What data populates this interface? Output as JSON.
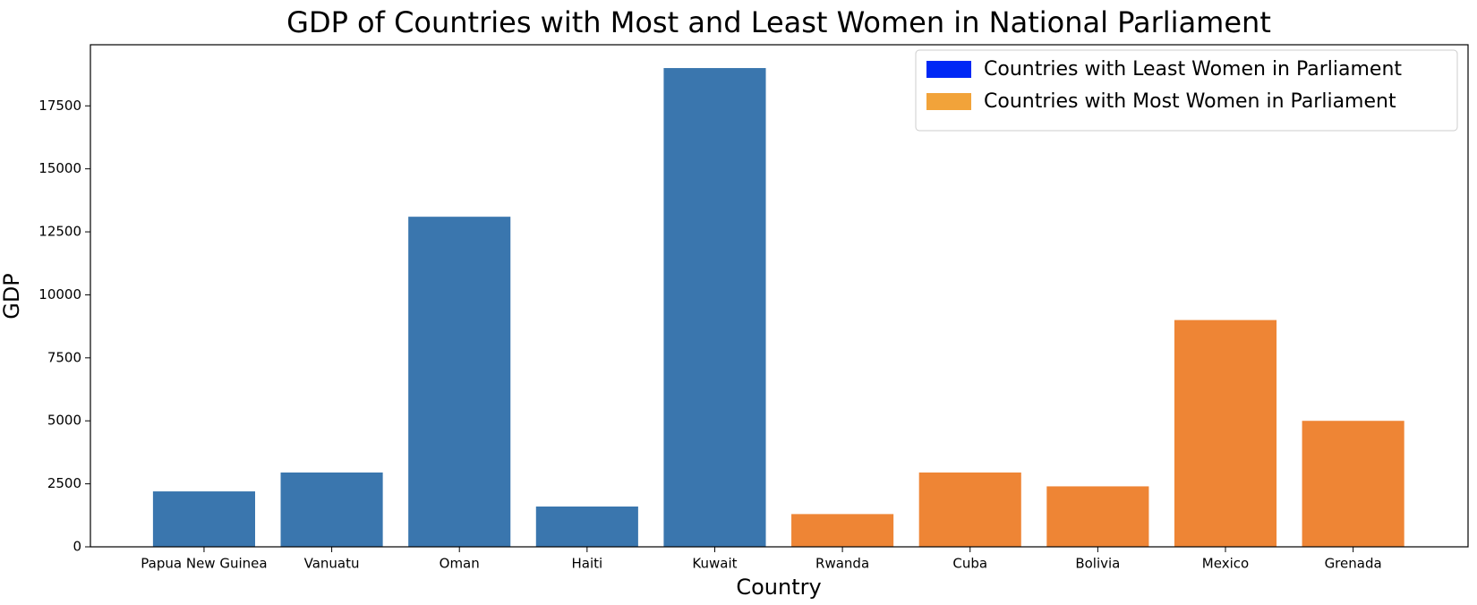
{
  "chart_data": {
    "type": "bar",
    "title": "GDP of Countries with Most and Least Women in National Parliament",
    "x_label": "Country",
    "y_label": "GDP",
    "categories": [
      "Papua New Guinea",
      "Vanuatu",
      "Oman",
      "Haiti",
      "Kuwait",
      "Rwanda",
      "Cuba",
      "Bolivia",
      "Mexico",
      "Grenada"
    ],
    "series": [
      {
        "name": "Countries with Least Women in Parliament",
        "color": "#3a76ae",
        "legend_color": "#0028f5",
        "values": [
          2200,
          2950,
          13100,
          1600,
          19000,
          null,
          null,
          null,
          null,
          null
        ]
      },
      {
        "name": "Countries with Most Women in Parliament",
        "color": "#ee8535",
        "legend_color": "#f2a33a",
        "values": [
          null,
          null,
          null,
          null,
          null,
          1300,
          2950,
          2400,
          9000,
          5000
        ]
      }
    ],
    "ylim": [
      0,
      19925
    ],
    "yticks": [
      0,
      2500,
      5000,
      7500,
      10000,
      12500,
      15000,
      17500
    ],
    "legend": "upper right"
  }
}
